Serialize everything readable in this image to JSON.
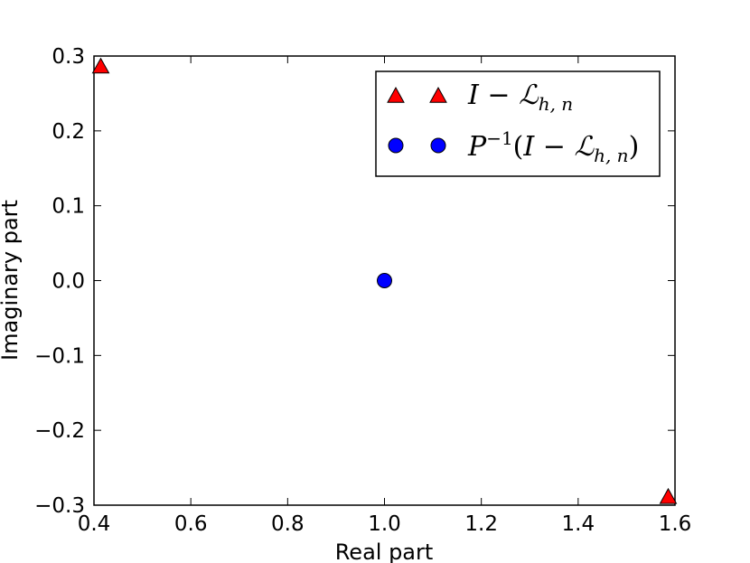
{
  "chart_data": {
    "type": "scatter",
    "xlabel": "Real part",
    "ylabel": "Imaginary part",
    "xlim": [
      0.4,
      1.6
    ],
    "ylim": [
      -0.3,
      0.3
    ],
    "x_ticks": [
      "0.4",
      "0.6",
      "0.8",
      "1.0",
      "1.2",
      "1.4",
      "1.6"
    ],
    "y_ticks": [
      "−0.3",
      "−0.2",
      "−0.1",
      "0.0",
      "0.1",
      "0.2",
      "0.3"
    ],
    "grid": false,
    "legend_position": "top-right",
    "series": [
      {
        "name": "I − ℒ_{h,n}",
        "marker": "triangle",
        "color": "#ff0000",
        "points": [
          [
            0.414,
            0.286
          ],
          [
            1.586,
            -0.289
          ]
        ]
      },
      {
        "name": "P^{−1}(I − ℒ_{h,n})",
        "marker": "circle",
        "color": "#0000ff",
        "points": [
          [
            1.0,
            0.0
          ]
        ]
      }
    ]
  }
}
